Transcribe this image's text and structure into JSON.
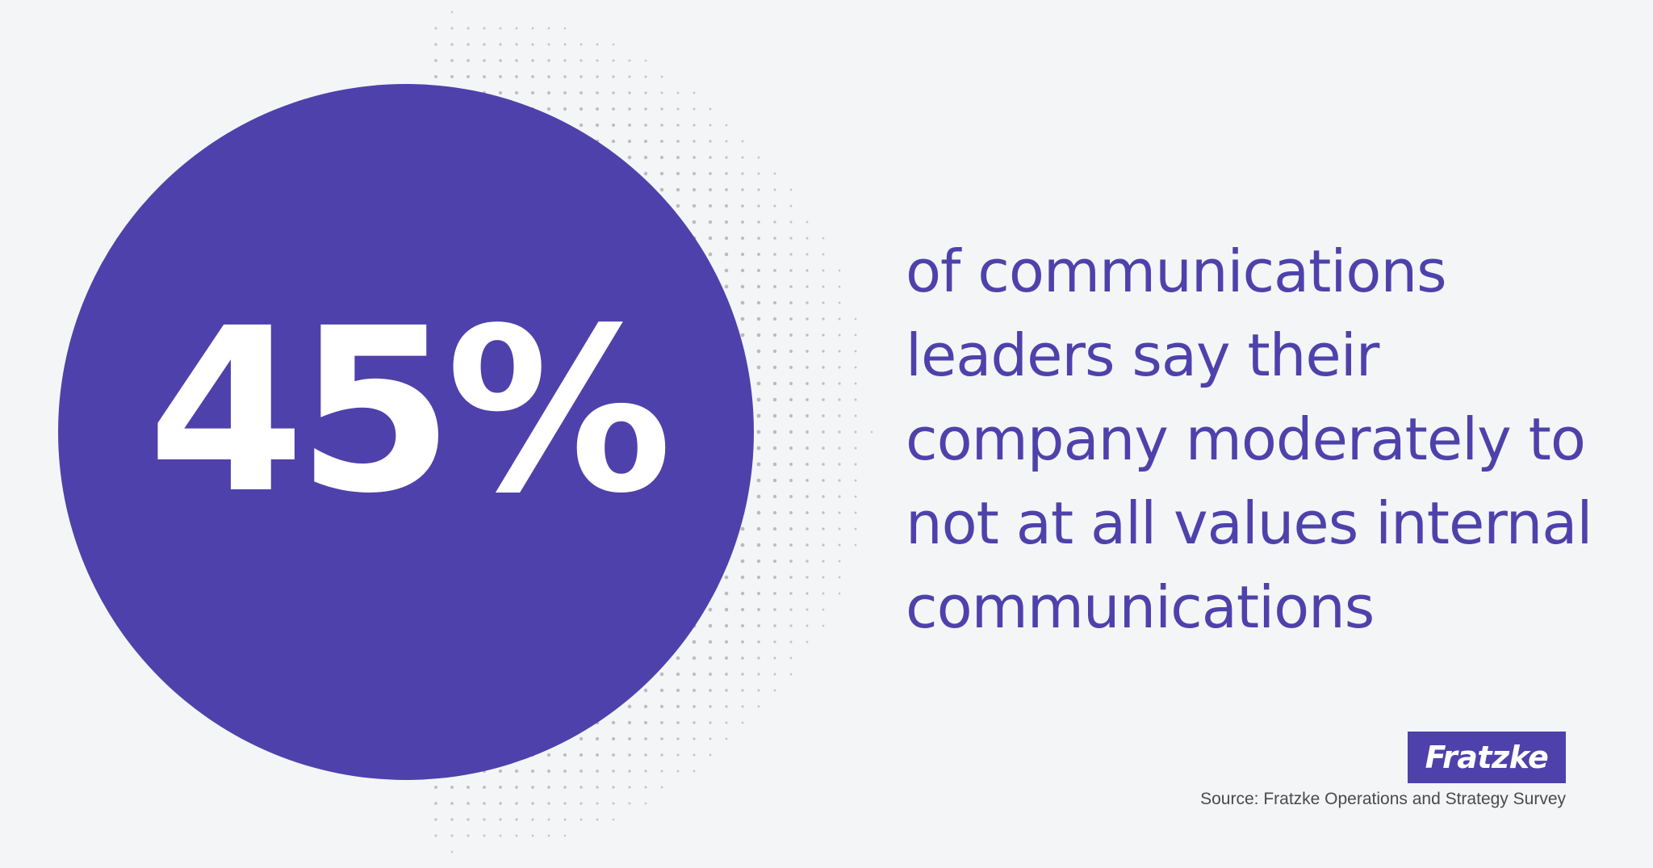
{
  "stat": {
    "value": "45%"
  },
  "statement": {
    "line1": "of communications",
    "line2": "leaders say their",
    "line3": "company moderately to",
    "line4": "not at all values internal",
    "line5": "communications"
  },
  "brand": {
    "name": "Fratzke"
  },
  "source": "Source: Fratzke Operations and Strategy Survey",
  "colors": {
    "accent": "#4f41ab",
    "background": "#f4f5f7",
    "dots": "#8c8c8c"
  }
}
